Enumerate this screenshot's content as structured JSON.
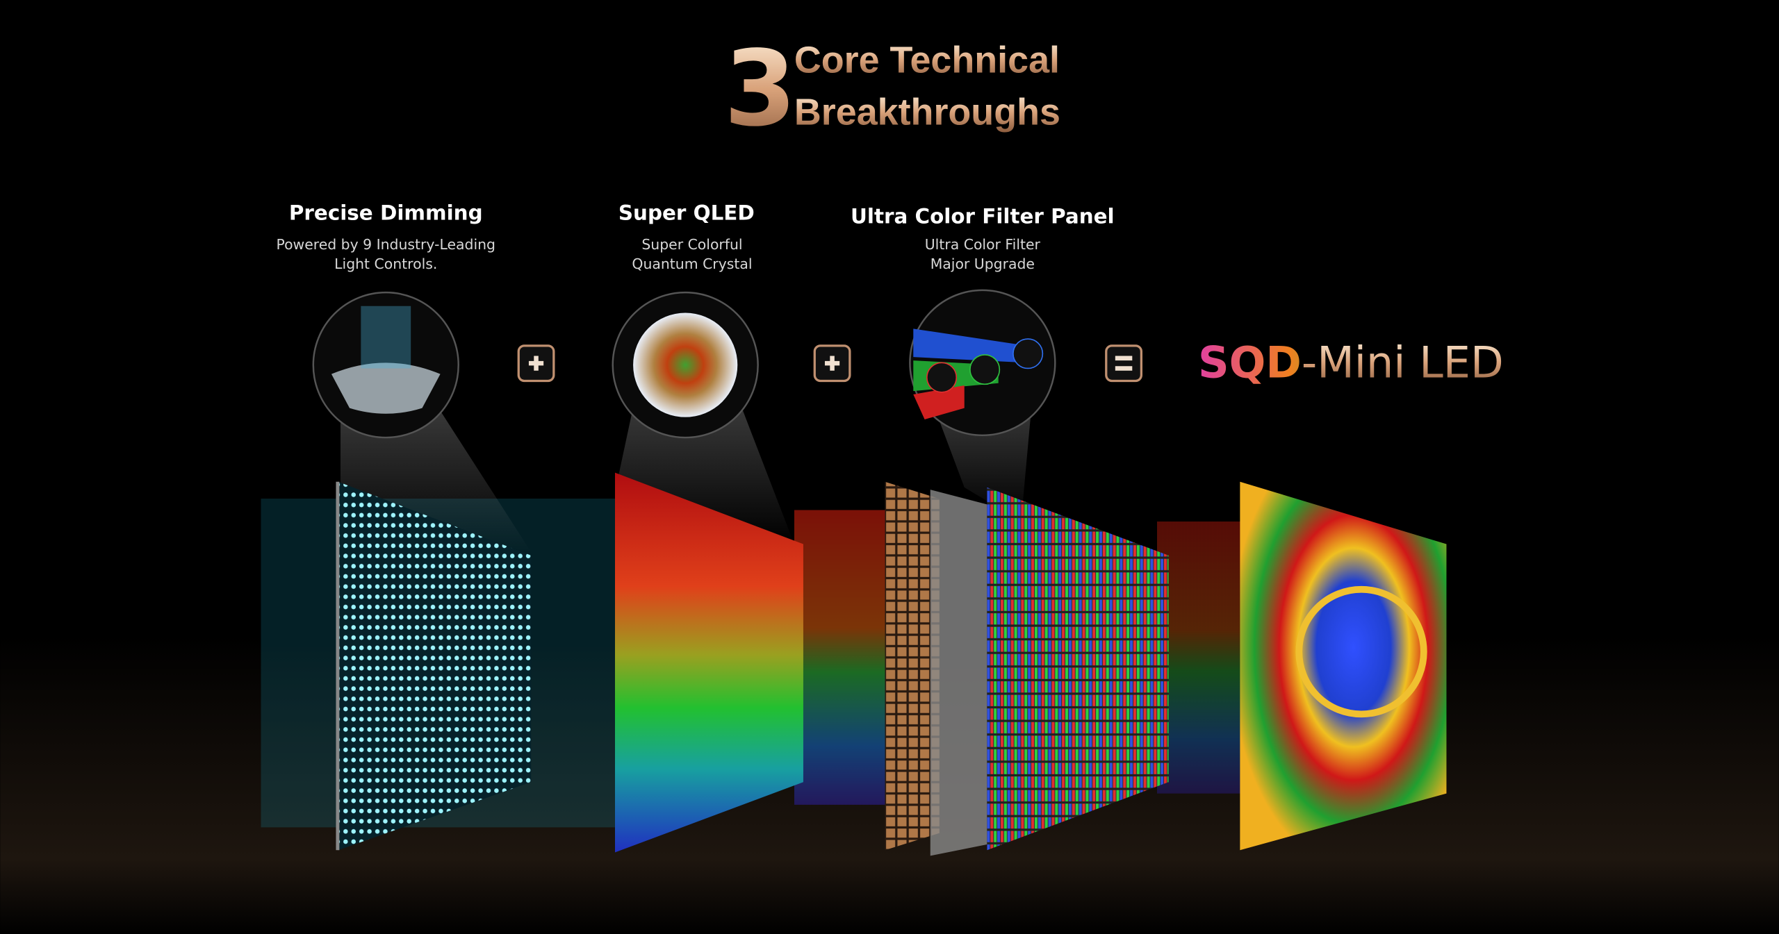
{
  "header": {
    "number": "3",
    "line1": "Core Technical",
    "line2": "Breakthroughs"
  },
  "features": [
    {
      "title": "Precise Dimming",
      "lines": [
        "Powered by 9 Industry-Leading",
        "Light Controls."
      ]
    },
    {
      "title": "Super QLED",
      "lines": [
        "Super Colorful",
        "Quantum Crystal"
      ]
    },
    {
      "title": "Ultra Color Filter Panel",
      "lines": [
        "Ultra Color Filter",
        "Major Upgrade"
      ]
    }
  ],
  "brand": {
    "colored": "SQD",
    "rest": "-Mini LED"
  }
}
